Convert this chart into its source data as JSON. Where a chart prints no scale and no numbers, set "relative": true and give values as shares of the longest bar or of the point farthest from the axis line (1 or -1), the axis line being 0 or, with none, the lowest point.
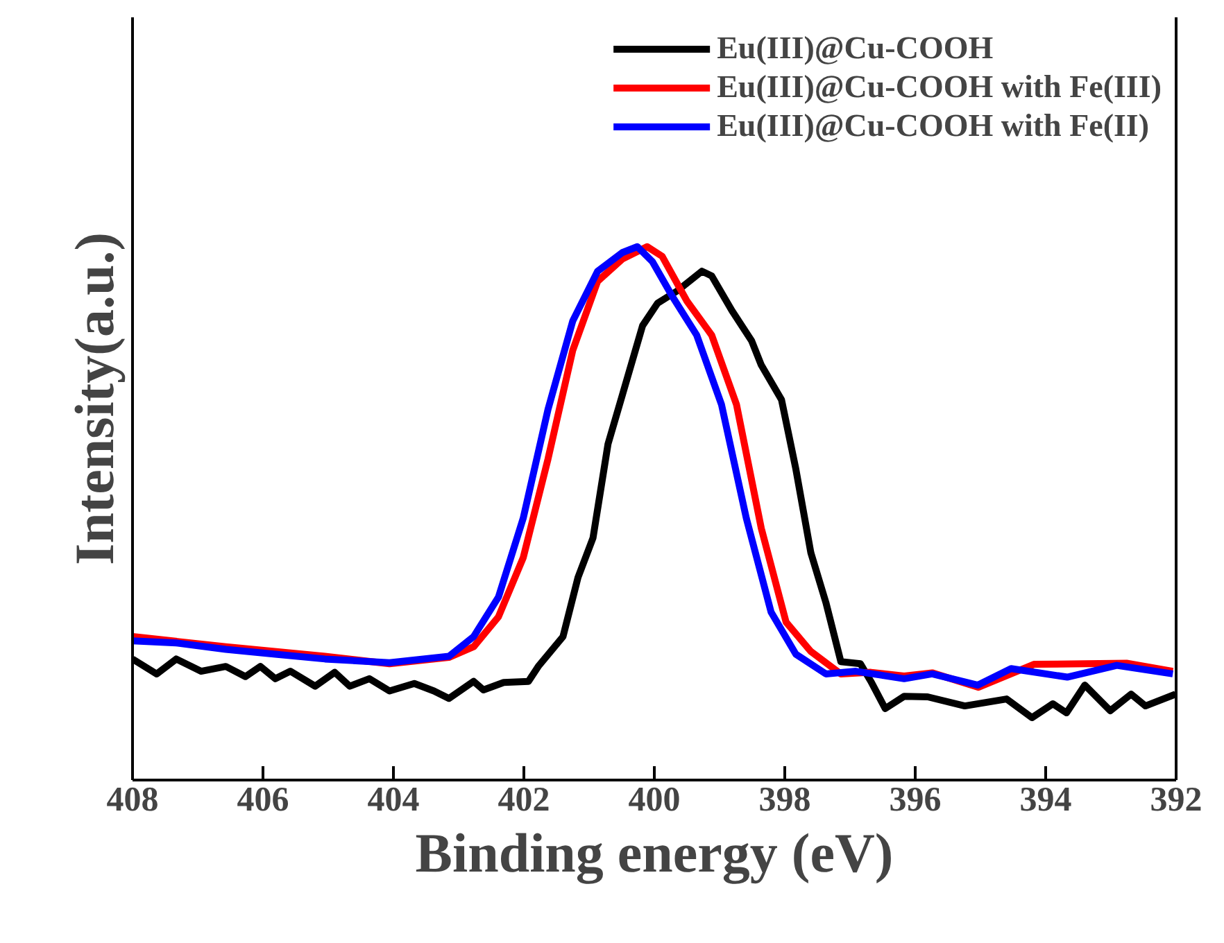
{
  "chart_data": {
    "type": "line",
    "xlabel": "Binding energy (eV)",
    "ylabel": "Intensity(a.u.)",
    "relative": true,
    "xlim": [
      408,
      392
    ],
    "xticks": [
      408,
      406,
      404,
      402,
      400,
      398,
      396,
      394,
      392
    ],
    "legend": "top right",
    "grid": false,
    "line_style": "solid",
    "marker": "none",
    "series": [
      {
        "name": "Eu(III)@Cu-COOH",
        "color": "#000000",
        "x": [
          408.0,
          407.63,
          407.33,
          406.95,
          406.57,
          406.27,
          406.04,
          405.81,
          405.58,
          405.2,
          404.9,
          404.67,
          404.37,
          404.06,
          403.68,
          403.38,
          403.15,
          402.77,
          402.62,
          402.31,
          401.93,
          401.78,
          401.4,
          401.17,
          400.94,
          400.71,
          400.49,
          400.18,
          399.95,
          399.65,
          399.27,
          399.12,
          398.81,
          398.51,
          398.36,
          398.05,
          397.83,
          397.6,
          397.37,
          397.14,
          396.84,
          396.68,
          396.46,
          396.17,
          395.81,
          395.24,
          394.6,
          394.21,
          393.89,
          393.68,
          393.4,
          393.01,
          392.69,
          392.47,
          392.01
        ],
        "values": [
          0.227,
          0.199,
          0.227,
          0.204,
          0.213,
          0.194,
          0.213,
          0.19,
          0.204,
          0.176,
          0.202,
          0.176,
          0.19,
          0.167,
          0.181,
          0.167,
          0.153,
          0.185,
          0.169,
          0.183,
          0.185,
          0.213,
          0.269,
          0.38,
          0.454,
          0.63,
          0.722,
          0.852,
          0.894,
          0.917,
          0.954,
          0.945,
          0.88,
          0.824,
          0.778,
          0.713,
          0.583,
          0.426,
          0.333,
          0.222,
          0.218,
          0.185,
          0.134,
          0.157,
          0.156,
          0.139,
          0.152,
          0.117,
          0.143,
          0.126,
          0.178,
          0.13,
          0.161,
          0.139,
          0.161
        ]
      },
      {
        "name": "Eu(III)@Cu-COOH with Fe(III)",
        "color": "#ff0000",
        "x": [
          408.0,
          406.57,
          405.05,
          404.06,
          403.15,
          402.77,
          402.39,
          402.01,
          401.63,
          401.25,
          400.87,
          400.49,
          400.11,
          399.88,
          399.5,
          399.12,
          398.74,
          398.36,
          397.98,
          397.6,
          397.14,
          396.68,
          396.17,
          395.74,
          395.03,
          394.18,
          392.76,
          392.05
        ],
        "values": [
          0.269,
          0.25,
          0.232,
          0.218,
          0.23,
          0.25,
          0.306,
          0.417,
          0.602,
          0.806,
          0.935,
          0.977,
          1.0,
          0.982,
          0.898,
          0.834,
          0.704,
          0.472,
          0.296,
          0.241,
          0.199,
          0.202,
          0.195,
          0.201,
          0.174,
          0.217,
          0.219,
          0.204
        ]
      },
      {
        "name": "Eu(III)@Cu-COOH with Fe(II)",
        "color": "#0000ff",
        "x": [
          408.0,
          407.33,
          406.57,
          405.81,
          405.05,
          404.06,
          403.15,
          402.77,
          402.39,
          402.01,
          401.63,
          401.25,
          400.87,
          400.49,
          400.26,
          400.03,
          399.73,
          399.35,
          398.97,
          398.59,
          398.21,
          397.83,
          397.37,
          396.91,
          396.17,
          395.74,
          395.04,
          394.53,
          393.67,
          392.91,
          392.05
        ],
        "values": [
          0.261,
          0.257,
          0.245,
          0.236,
          0.227,
          0.22,
          0.232,
          0.269,
          0.343,
          0.491,
          0.695,
          0.861,
          0.954,
          0.989,
          1.0,
          0.972,
          0.908,
          0.834,
          0.704,
          0.491,
          0.315,
          0.236,
          0.199,
          0.204,
          0.19,
          0.199,
          0.178,
          0.209,
          0.193,
          0.215,
          0.199
        ]
      }
    ]
  }
}
